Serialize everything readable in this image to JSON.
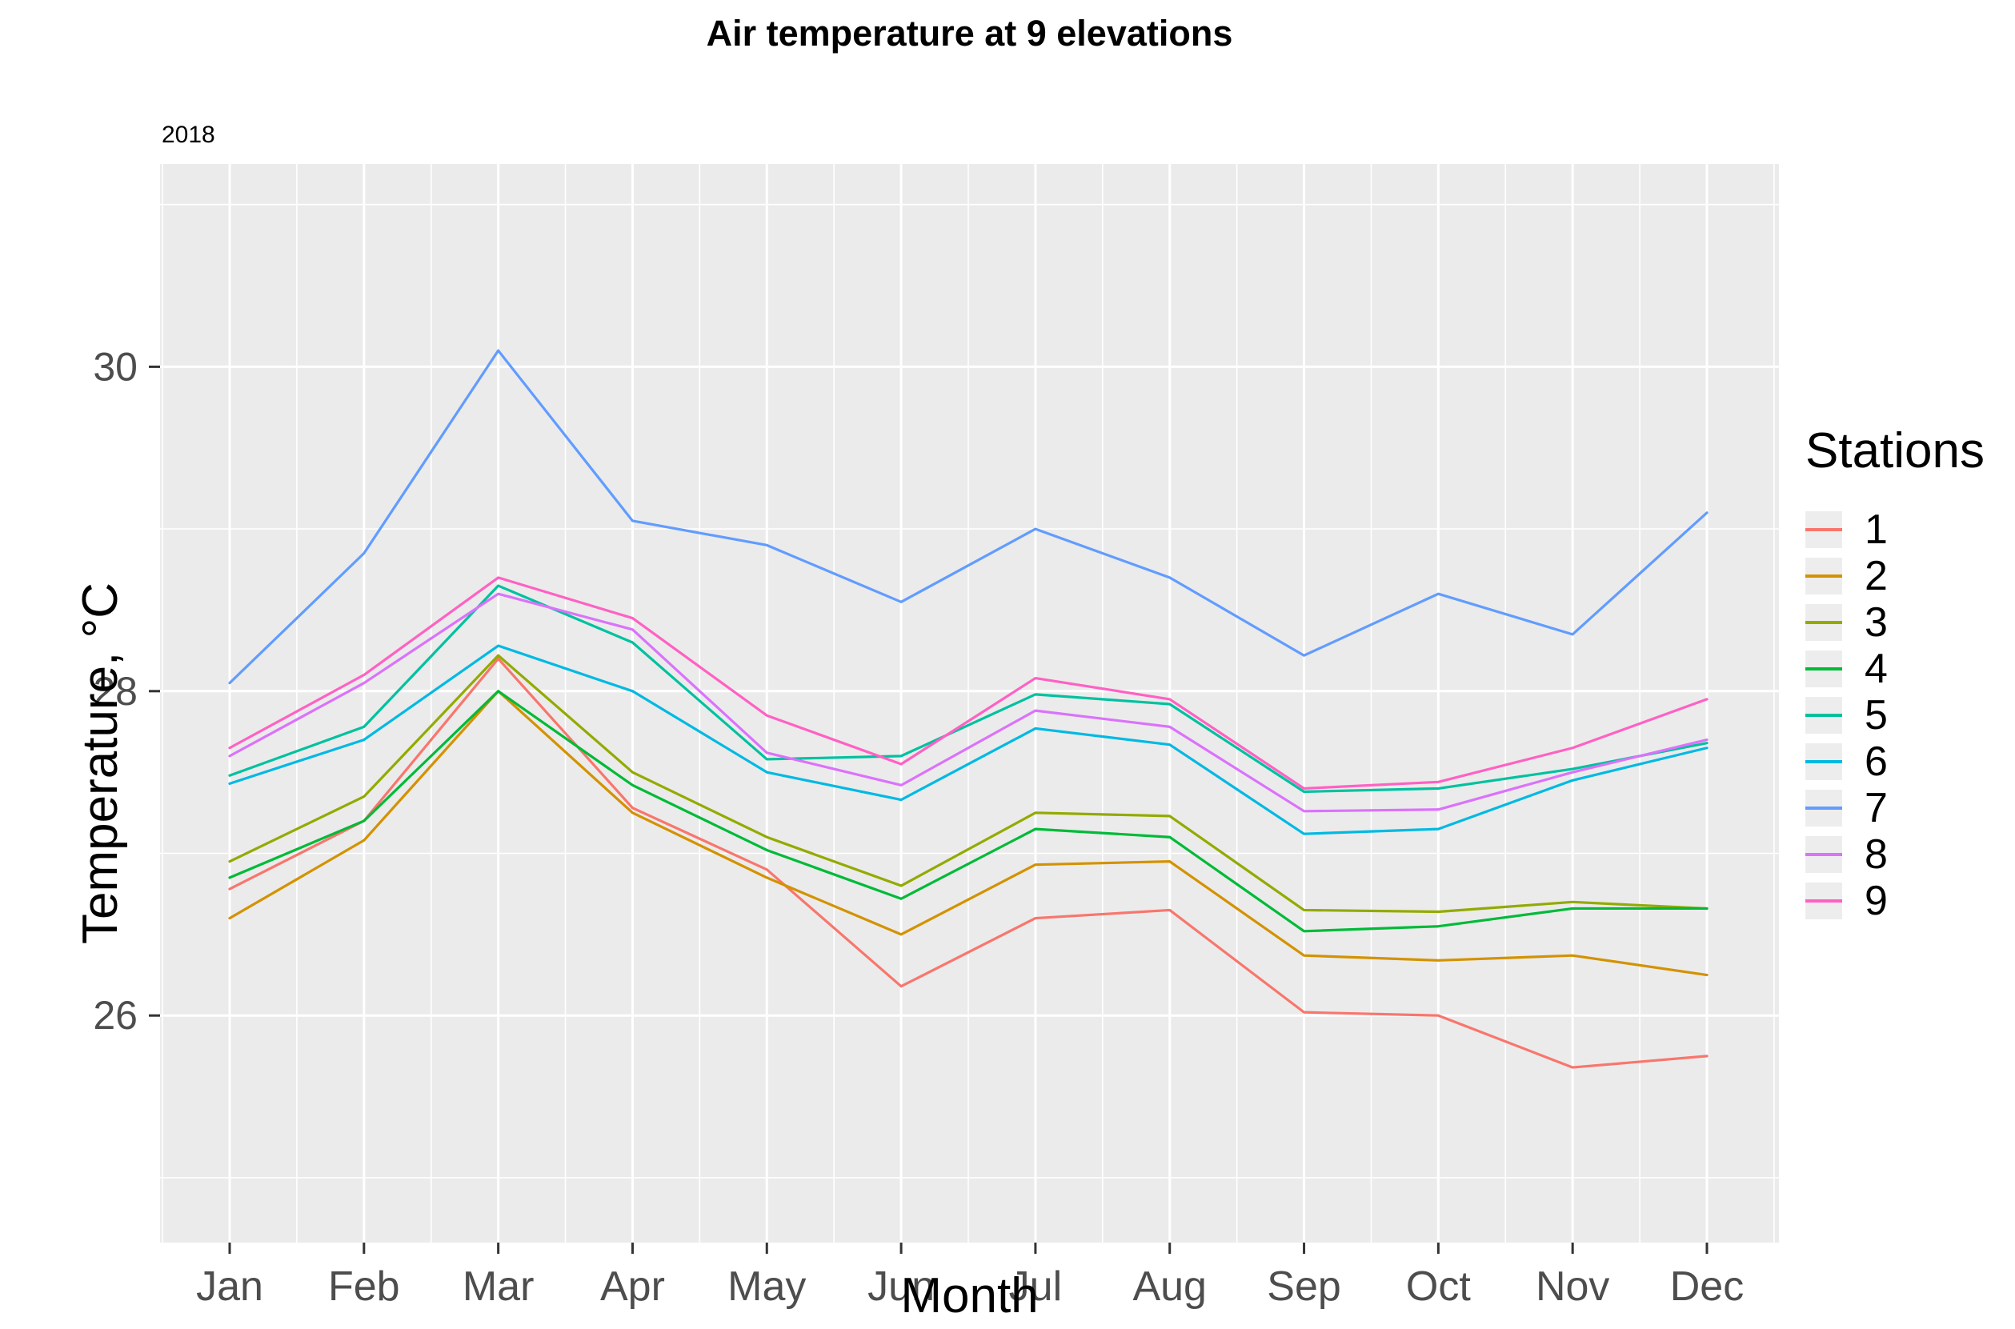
{
  "chart_data": {
    "type": "line",
    "title": "Air temperature at 9 elevations",
    "facet_label": "2018",
    "xlabel": "Month",
    "ylabel": "Temperature, °C",
    "legend_title": "Stations",
    "legend_position": "right",
    "grid": true,
    "categories": [
      "Jan",
      "Feb",
      "Mar",
      "Apr",
      "May",
      "Jun",
      "Jul",
      "Aug",
      "Sep",
      "Oct",
      "Nov",
      "Dec"
    ],
    "y_ticks": [
      26,
      28,
      30
    ],
    "y_minor_ticks": [
      25,
      27,
      29,
      31
    ],
    "ylim": [
      24.6,
      31.25
    ],
    "colors": {
      "panel_background": "#EBEBEB",
      "gridline": "#FFFFFF",
      "tick_label": "#4D4D4D",
      "tick_mark": "#333333",
      "legend_key_background": "#EDEDED"
    },
    "series": [
      {
        "name": "1",
        "color": "#F8766D",
        "values": [
          26.78,
          27.2,
          28.2,
          27.28,
          26.9,
          26.18,
          26.6,
          26.65,
          26.02,
          26.0,
          25.68,
          25.75
        ]
      },
      {
        "name": "2",
        "color": "#D39200",
        "values": [
          26.6,
          27.08,
          28.0,
          27.25,
          26.85,
          26.5,
          26.93,
          26.95,
          26.37,
          26.34,
          26.37,
          26.25
        ]
      },
      {
        "name": "3",
        "color": "#93AA00",
        "values": [
          26.95,
          27.35,
          28.22,
          27.5,
          27.1,
          26.8,
          27.25,
          27.23,
          26.65,
          26.64,
          26.7,
          26.66
        ]
      },
      {
        "name": "4",
        "color": "#00BA38",
        "values": [
          26.85,
          27.2,
          28.0,
          27.42,
          27.02,
          26.72,
          27.15,
          27.1,
          26.52,
          26.55,
          26.66,
          26.66
        ]
      },
      {
        "name": "5",
        "color": "#00C19F",
        "values": [
          27.48,
          27.78,
          28.65,
          28.3,
          27.58,
          27.6,
          27.98,
          27.92,
          27.38,
          27.4,
          27.52,
          27.68
        ]
      },
      {
        "name": "6",
        "color": "#00B9E3",
        "values": [
          27.43,
          27.7,
          28.28,
          28.0,
          27.5,
          27.33,
          27.77,
          27.67,
          27.12,
          27.15,
          27.45,
          27.65
        ]
      },
      {
        "name": "7",
        "color": "#619CFF",
        "values": [
          28.05,
          28.85,
          30.1,
          29.05,
          28.9,
          28.55,
          29.0,
          28.7,
          28.22,
          28.6,
          28.35,
          29.1
        ]
      },
      {
        "name": "8",
        "color": "#DB72FB",
        "values": [
          27.6,
          28.05,
          28.6,
          28.38,
          27.62,
          27.42,
          27.88,
          27.78,
          27.26,
          27.27,
          27.5,
          27.7
        ]
      },
      {
        "name": "9",
        "color": "#FF61C3",
        "values": [
          27.65,
          28.1,
          28.7,
          28.45,
          27.85,
          27.55,
          28.08,
          27.95,
          27.4,
          27.44,
          27.65,
          27.95
        ]
      }
    ]
  }
}
